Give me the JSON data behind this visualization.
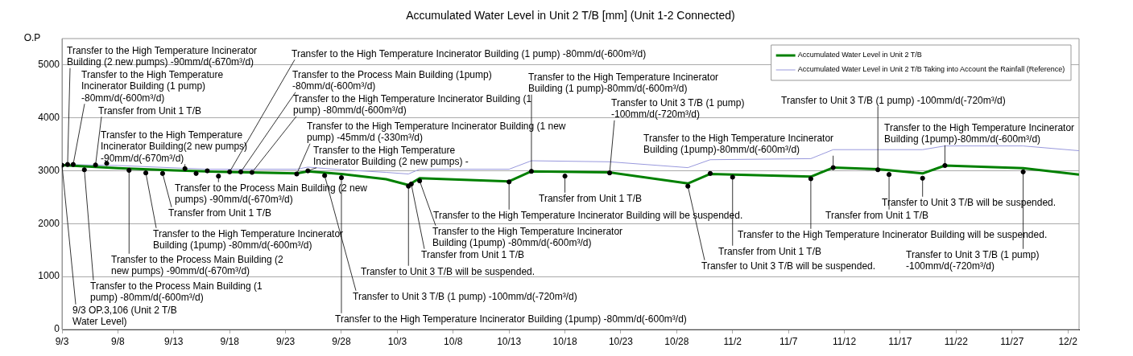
{
  "chart_data": {
    "type": "line",
    "title": "Accumulated Water Level in Unit 2 T/B [mm] (Unit 1-2 Connected)",
    "ylabel": "O.P",
    "xlim": [
      "--09-03",
      "--12-03"
    ],
    "xticks": [
      {
        "value": "--09-03",
        "label": "9/3"
      },
      {
        "value": "--09-08",
        "label": "9/8"
      },
      {
        "value": "--09-13",
        "label": "9/13"
      },
      {
        "value": "--09-18",
        "label": "9/18"
      },
      {
        "value": "--09-23",
        "label": "9/23"
      },
      {
        "value": "--09-28",
        "label": "9/28"
      },
      {
        "value": "--10-03",
        "label": "10/3"
      },
      {
        "value": "--10-08",
        "label": "10/8"
      },
      {
        "value": "--10-13",
        "label": "10/13"
      },
      {
        "value": "--10-18",
        "label": "10/18"
      },
      {
        "value": "--10-23",
        "label": "10/23"
      },
      {
        "value": "--10-28",
        "label": "10/28"
      },
      {
        "value": "--11-02",
        "label": "11/2"
      },
      {
        "value": "--11-07",
        "label": "11/7"
      },
      {
        "value": "--11-12",
        "label": "11/12"
      },
      {
        "value": "--11-17",
        "label": "11/17"
      },
      {
        "value": "--11-22",
        "label": "11/22"
      },
      {
        "value": "--11-27",
        "label": "11/27"
      },
      {
        "value": "--12-02",
        "label": "12/2"
      }
    ],
    "ylim": [
      0,
      5500
    ],
    "yticks": [
      0,
      1000,
      2000,
      3000,
      4000,
      5000
    ],
    "grid": "y",
    "legend": "top right",
    "series": [
      {
        "name": "Accumulated Water Level in Unit 2 T/B",
        "color": "#008000",
        "x": [
          "--09-03",
          "--09-08",
          "--09-13",
          "--09-17",
          "--09-24",
          "--09-25",
          "--09-28",
          "--10-02",
          "--10-04",
          "--10-05",
          "--10-13",
          "--10-15",
          "--10-22",
          "--10-29",
          "--10-31",
          "--11-09",
          "--11-11",
          "--11-15",
          "--11-19",
          "--11-21",
          "--11-28",
          "--12-03"
        ],
        "values": [
          3106,
          3050,
          3010,
          2980,
          2950,
          2990,
          2940,
          2840,
          2730,
          2860,
          2800,
          2990,
          2970,
          2760,
          2940,
          2890,
          3060,
          3030,
          2950,
          3100,
          3050,
          2930
        ]
      },
      {
        "name": "Accumulated Water Level in Unit 2 T/B Taking into Account the Rainfall (Reference)",
        "color": "#9999dd",
        "x": [
          "--09-03",
          "--09-08",
          "--09-16",
          "--09-24",
          "--09-25",
          "--09-28",
          "--10-02",
          "--10-04",
          "--10-05",
          "--10-13",
          "--10-15",
          "--10-22",
          "--10-29",
          "--10-31",
          "--11-09",
          "--11-11",
          "--11-19",
          "--11-21",
          "--11-28",
          "--12-03"
        ],
        "values": [
          3120,
          3100,
          3030,
          3030,
          3070,
          3020,
          2970,
          2940,
          3030,
          3030,
          3190,
          3170,
          3060,
          3210,
          3230,
          3400,
          3400,
          3470,
          3470,
          3380
        ]
      },
      {
        "type": "scatter",
        "color": "#000000",
        "x": [
          "--09-03",
          "--09-03T12:00",
          "--09-04",
          "--09-05",
          "--09-06",
          "--09-07",
          "--09-09",
          "--09-10T12:00",
          "--09-12",
          "--09-14",
          "--09-15",
          "--09-16",
          "--09-17",
          "--09-18",
          "--09-19",
          "--09-20",
          "--09-24",
          "--09-25",
          "--09-26T12:00",
          "--09-28",
          "--10-04",
          "--10-04T06:00",
          "--10-05",
          "--10-13",
          "--10-15",
          "--10-18",
          "--10-22",
          "--10-29",
          "--10-31",
          "--11-02",
          "--11-09",
          "--11-11",
          "--11-15",
          "--11-16",
          "--11-19",
          "--11-21",
          "--11-28"
        ],
        "values": [
          3106,
          3120,
          3120,
          3020,
          3110,
          3140,
          3010,
          2960,
          2950,
          3040,
          2950,
          3000,
          2900,
          2980,
          2980,
          2970,
          2940,
          3000,
          2910,
          2870,
          2710,
          2750,
          2810,
          2790,
          2990,
          2900,
          2960,
          2710,
          2950,
          2880,
          2850,
          3060,
          3020,
          2930,
          2860,
          3100,
          2980
        ]
      }
    ],
    "annotations": [
      {
        "text": "Transfer to the High Temperature Incinerator Building (2 new pumps) -90mm/d(-670m³/d)",
        "x": "--09-03T12:00",
        "y": 3120
      },
      {
        "text": "Transfer to the High Temperature Incinerator Building (1 pump) -80mm/d(-600m³/d)",
        "x": "--09-04",
        "y": 3120
      },
      {
        "text": "Transfer from Unit 1 T/B",
        "x": "--09-06",
        "y": 3110
      },
      {
        "text": "Transfer to the High Temperature Incinerator Building(2 new pumps) -90mm/d(-670m³/d)",
        "x": "--09-14",
        "y": 3040
      },
      {
        "text": "Transfer to the High Temperature Incinerator Building (1pump) -80mm/d(-600m³/d)",
        "x": "--09-10T12:00",
        "y": 2960
      },
      {
        "text": "Transfer to the High Temperature Incinerator Building (1 pump) -80mm/d(-600m³/d)",
        "x": "--09-20",
        "y": 2970
      },
      {
        "text": "Transfer to the High Temperature Incinerator Building (1 pump) -80mm/d(-600m³/d)",
        "x": "--09-18",
        "y": 2980
      },
      {
        "text": "Transfer to the Process Main Building (1pump) -80mm/d(-600m³/d)",
        "x": "--09-19",
        "y": 2980
      },
      {
        "text": "Transfer to the High Temperature Incinerator Building (1 new pump) -45mm/d (-330m³/d)",
        "x": "--09-24",
        "y": 2940
      },
      {
        "text": "Transfer to the High Temperature Incinerator Building (2 new pumps) -",
        "x": "--09-25",
        "y": 3000
      },
      {
        "text": "Transfer to the Process Main Building (2 new pumps) -90mm/d(-670m³/d)",
        "x": "--09-17",
        "y": 2900
      },
      {
        "text": "Transfer from Unit 1 T/B",
        "x": "--09-12",
        "y": 2950
      },
      {
        "text": "Transfer to the Process Main Building (2 new pumps) -90mm/d(-670m³/d)",
        "x": "--09-09",
        "y": 3010
      },
      {
        "text": "Transfer to the Process Main Building (1 pump) -80mm/d(-600m³/d)",
        "x": "--09-05",
        "y": 3020
      },
      {
        "text": "9/3 OP.3,106 (Unit 2 T/B Water Level)",
        "x": "--09-03",
        "y": 3106
      },
      {
        "text": "Transfer to Unit 3 T/B (1 pump) -100mm/d(-720m³/d)",
        "x": "--09-26T12:00",
        "y": 2910
      },
      {
        "text": "Transfer to the High Temperature Incinerator Building (1pump) -80mm/d(-600m³/d)",
        "x": "--10-05",
        "y": 2810
      },
      {
        "text": "Transfer to the High Temperature Incinerator Building (1pump) -80mm/d(-600m³/d)",
        "x": "--09-28",
        "y": 2870
      },
      {
        "text": "Transfer to Unit 3 T/B will be suspended.",
        "x": "--10-04",
        "y": 2710
      },
      {
        "text": "Transfer from Unit 1 T/B",
        "x": "--10-04T06:00",
        "y": 2750
      },
      {
        "text": "Transfer to the High Temperature Incinerator Building will be suspended.",
        "x": "--10-13",
        "y": 2790
      },
      {
        "text": "Transfer to the High Temperature Incinerator Building (1 pump)-80mm/d(-600m³/d)",
        "x": "--10-15",
        "y": 2990
      },
      {
        "text": "Transfer from Unit 1 T/B",
        "x": "--10-18",
        "y": 2900
      },
      {
        "text": "Transfer to Unit 3 T/B (1 pump) -100mm/d(-720m³/d)",
        "x": "--10-22",
        "y": 2960
      },
      {
        "text": "Transfer to the High Temperature Incinerator Building (1pump)-80mm/d(-600m³/d)",
        "x": "--11-11",
        "y": 3060
      },
      {
        "text": "Transfer to the High Temperature Incinerator Building will be suspended.",
        "x": "--11-09",
        "y": 2850
      },
      {
        "text": "Transfer from Unit 1 T/B",
        "x": "--11-02",
        "y": 2880
      },
      {
        "text": "Transfer to Unit 3 T/B will be suspended.",
        "x": "--10-29",
        "y": 2710
      },
      {
        "text": "Transfer to Unit 3 T/B (1 pump) -100mm/d(-720m³/d)",
        "x": "--11-15",
        "y": 3020
      },
      {
        "text": "Transfer to the High Temperature Incinerator Building (1pump)-80mm/d(-600m³/d)",
        "x": "--11-21",
        "y": 3100
      },
      {
        "text": "Transfer from Unit 1 T/B",
        "x": "--11-16",
        "y": 2930
      },
      {
        "text": "Transfer to Unit 3 T/B will be suspended.",
        "x": "--11-19",
        "y": 2860
      },
      {
        "text": "Transfer to Unit 3 T/B (1 pump) -100mm/d(-720m³/d)",
        "x": "--11-28",
        "y": 2980
      }
    ]
  }
}
